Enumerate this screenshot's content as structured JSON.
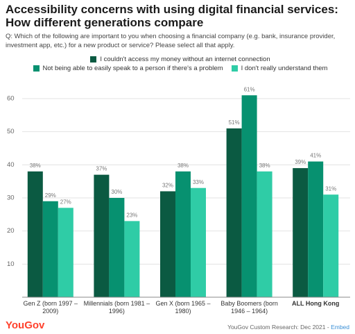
{
  "chart_data": {
    "type": "bar",
    "title": "Accessibility concerns with using digital financial services: How different generations compare",
    "subtitle": "Q: Which of the following are important to you when choosing a financial company (e.g. bank, insurance provider, investment app, etc.) for a new product or service? Please select all that apply.",
    "categories": [
      "Gen Z (born 1997 – 2009)",
      "Millennials (born 1981 – 1996)",
      "Gen X (born 1965 – 1980)",
      "Baby Boomers (born 1946 – 1964)",
      "ALL Hong Kong"
    ],
    "series": [
      {
        "name": "I couldn't access my money without an internet connection",
        "color": "#0b5a42",
        "values": [
          38,
          37,
          32,
          51,
          39
        ],
        "value_labels": [
          "38%",
          "37%",
          "32%",
          "51%",
          "39%"
        ]
      },
      {
        "name": "Not being able to easily speak to a person if there's a problem",
        "color": "#079170",
        "values": [
          29,
          30,
          38,
          61,
          41
        ],
        "value_labels": [
          "29%",
          "30%",
          "38%",
          "61%",
          "41%"
        ]
      },
      {
        "name": "I don't really understand them",
        "color": "#2fcca6",
        "values": [
          27,
          23,
          33,
          38,
          31
        ],
        "value_labels": [
          "27%",
          "23%",
          "33%",
          "38%",
          "31%"
        ]
      }
    ],
    "ylim": [
      0,
      65
    ],
    "yticks": [
      10,
      20,
      30,
      40,
      50,
      60
    ],
    "grid": true,
    "brand": "YouGov",
    "source": "YouGov Custom Research: Dec 2021 -",
    "embed": "Embed"
  }
}
